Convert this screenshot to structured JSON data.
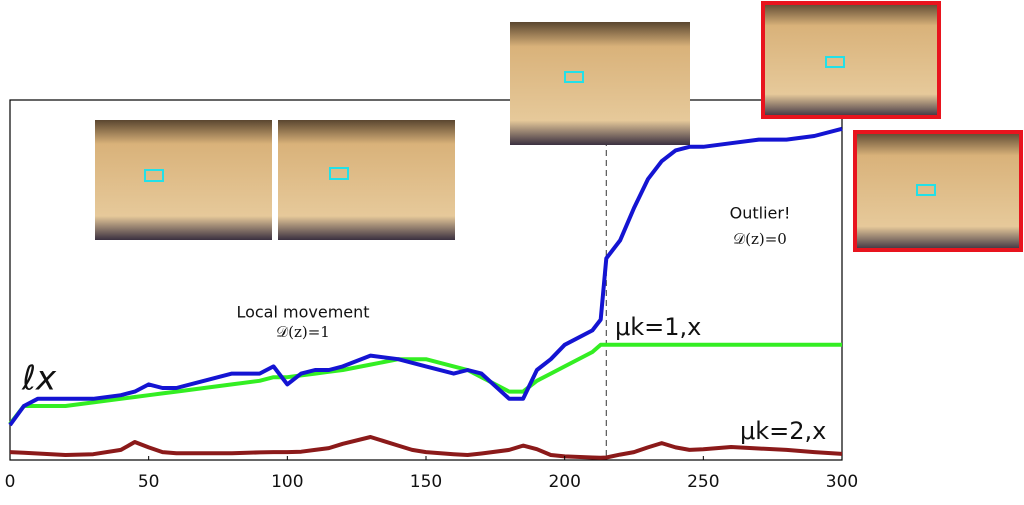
{
  "chart_data": {
    "type": "line",
    "x": [
      0,
      5,
      10,
      20,
      30,
      40,
      45,
      50,
      55,
      60,
      70,
      80,
      90,
      95,
      100,
      105,
      110,
      115,
      120,
      130,
      140,
      145,
      150,
      160,
      165,
      170,
      180,
      185,
      190,
      195,
      200,
      210,
      213,
      215,
      220,
      225,
      230,
      235,
      240,
      245,
      250,
      260,
      270,
      280,
      290,
      300
    ],
    "series": [
      {
        "name": "ℓx",
        "color": "#1414d2",
        "values": [
          9.7,
          15,
          17,
          17,
          17,
          18,
          19,
          21,
          20,
          20,
          22,
          24,
          24,
          26,
          21,
          24,
          25,
          25,
          26,
          29,
          28,
          27,
          26,
          24,
          25,
          24,
          17,
          17,
          25,
          28,
          32,
          36,
          39,
          56,
          61,
          70,
          78,
          83,
          86,
          87,
          87,
          88,
          89,
          89,
          90,
          92
        ]
      },
      {
        "name": "μk=1,x",
        "color": "#33ee22",
        "values": [
          10,
          15,
          15,
          15,
          16,
          17,
          17.5,
          18,
          18.5,
          19,
          20,
          21,
          22,
          23,
          23,
          23.5,
          24,
          24.5,
          25,
          26.5,
          28,
          28,
          28,
          26,
          25,
          23,
          19,
          19,
          22,
          24,
          26,
          30,
          32,
          32,
          32,
          32,
          32,
          32,
          32,
          32,
          32,
          32,
          32,
          32,
          32,
          32
        ]
      },
      {
        "name": "μk=2,x",
        "color": "#8b1a1a",
        "values": [
          2.2,
          2,
          1.8,
          1.4,
          1.6,
          2.8,
          5,
          3.5,
          2.2,
          1.9,
          1.9,
          1.9,
          2.1,
          2.2,
          2.2,
          2.3,
          2.8,
          3.3,
          4.5,
          6.4,
          4,
          2.8,
          2.2,
          1.6,
          1.4,
          1.8,
          2.8,
          4,
          3,
          1.4,
          1,
          0.7,
          0.6,
          0.7,
          1.5,
          2.2,
          3.5,
          4.7,
          3.5,
          2.8,
          3,
          3.6,
          3.2,
          2.8,
          2.2,
          1.7
        ]
      }
    ],
    "xlim": [
      0,
      300
    ],
    "xticks": [
      0,
      50,
      100,
      150,
      200,
      250,
      300
    ],
    "ylim": [
      0,
      100
    ],
    "vline": 215,
    "annotations": [
      "Local movement",
      "𝒟(z)=1",
      "Outlier!",
      "𝒟(z)=0"
    ]
  }
}
